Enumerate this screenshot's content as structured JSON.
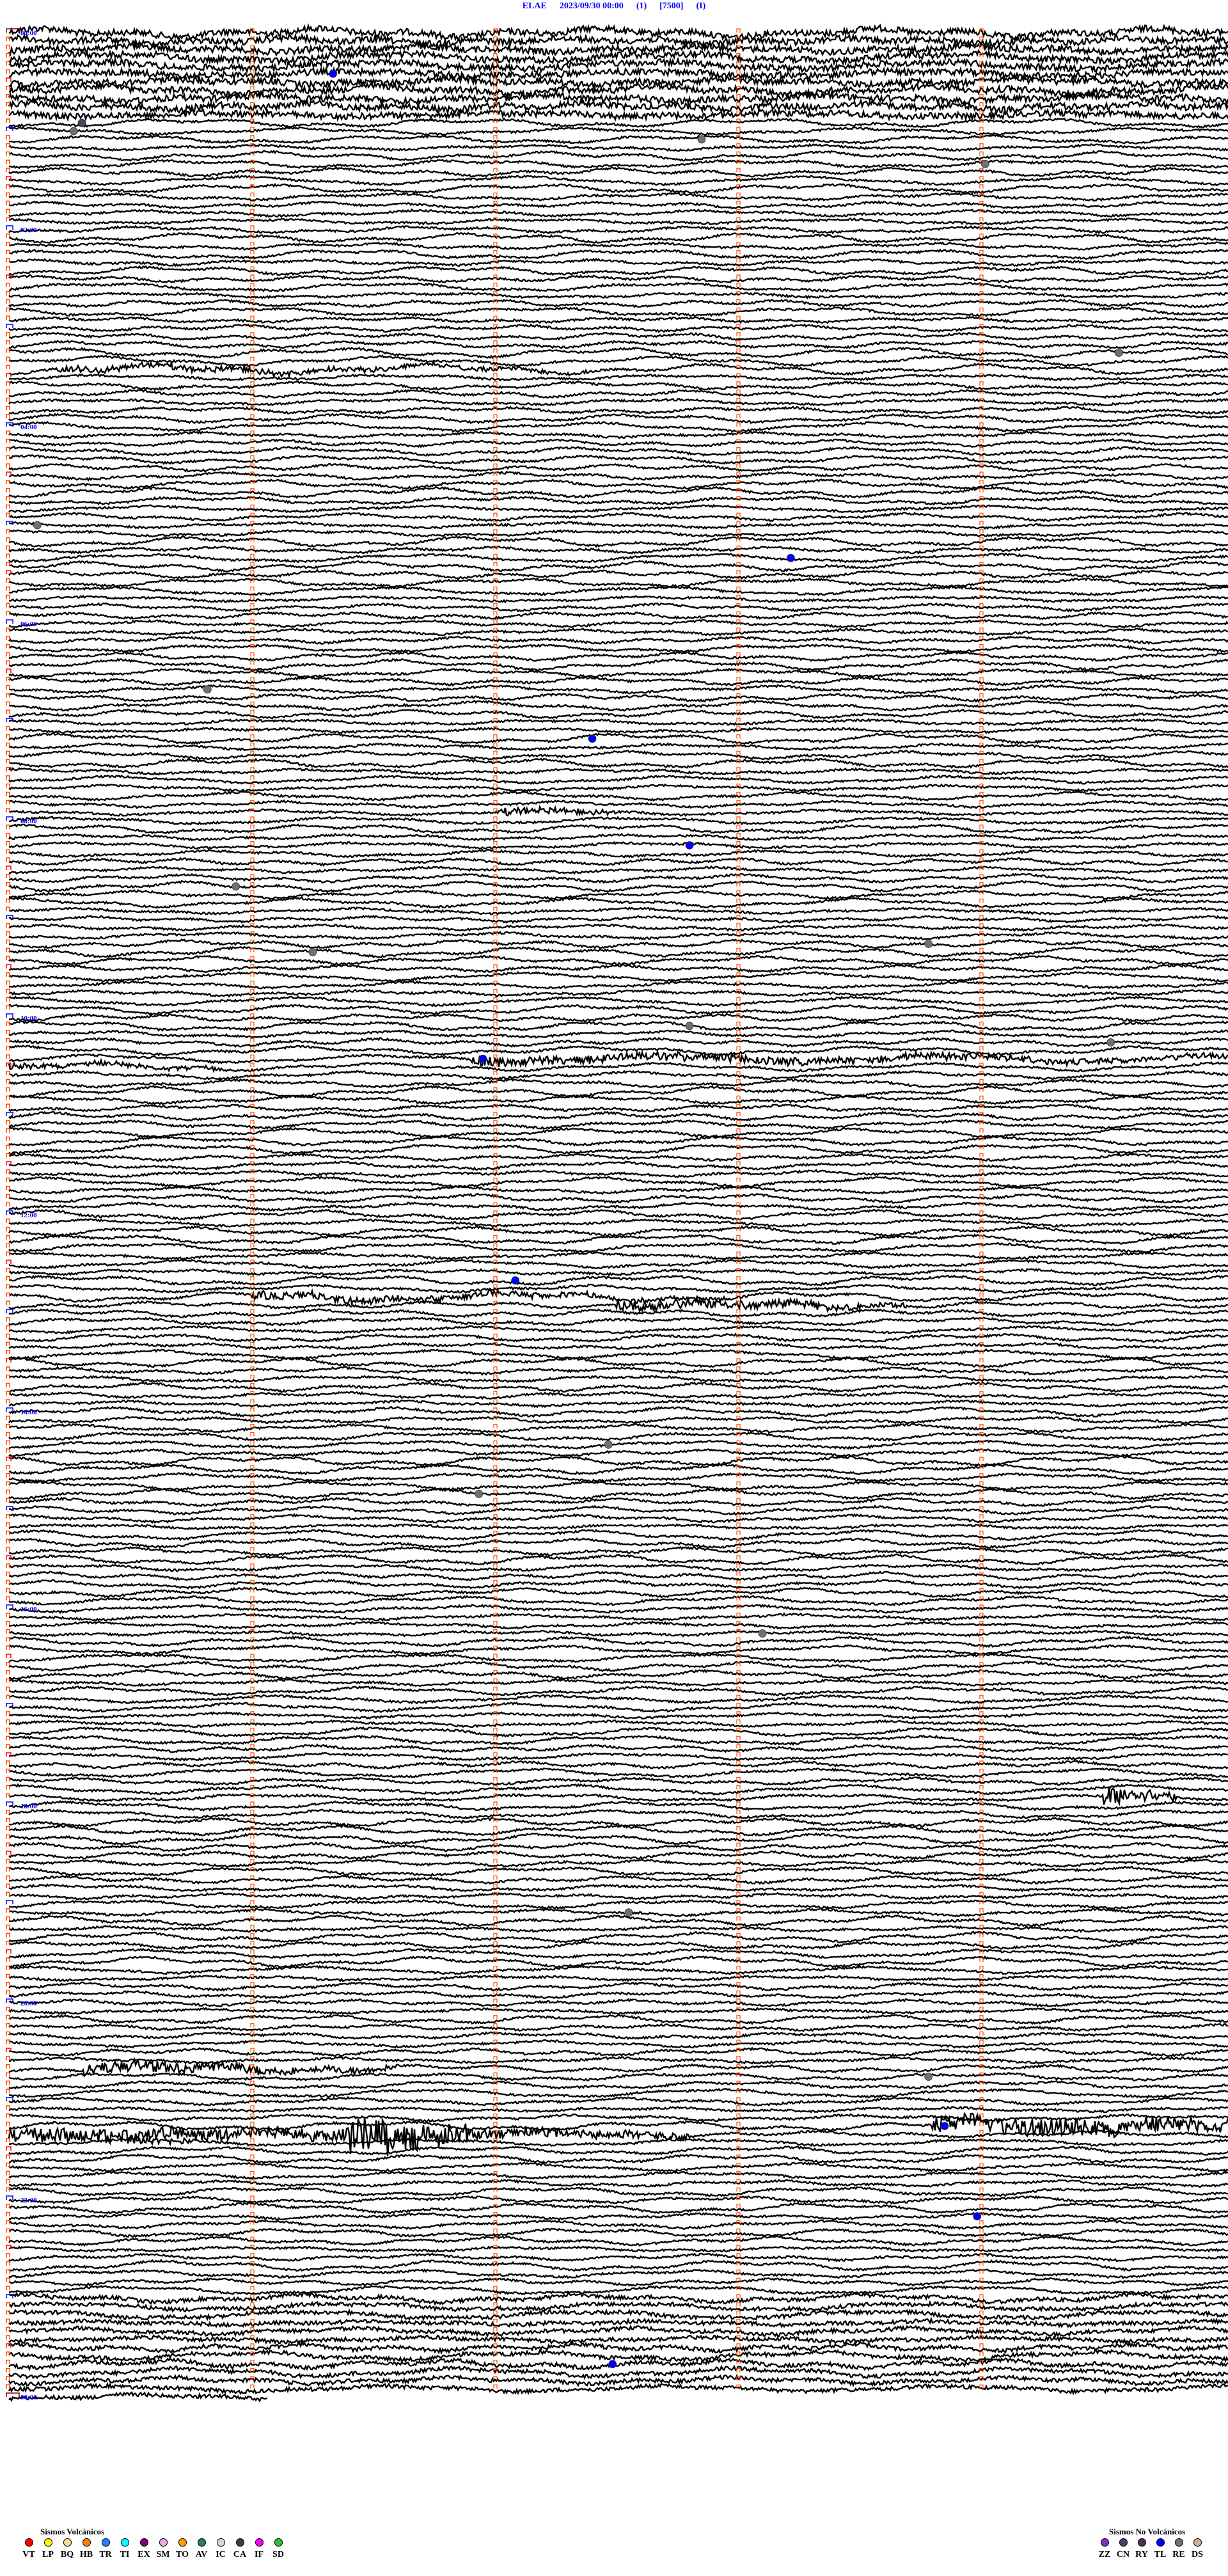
{
  "header": {
    "station": "ELAE",
    "datetime": "2023/09/30 00:00",
    "channel": "(1)",
    "scale": "[7500]",
    "mode": "(I)"
  },
  "hour_labels": [
    "00:00",
    "02:00",
    "04:00",
    "06:00",
    "08:00",
    "10:00",
    "12:00",
    "14:00",
    "16:00",
    "18:00",
    "20:00",
    "22:00",
    "00:00"
  ],
  "events": [
    {
      "time": "00:26:20",
      "type": "TL"
    },
    {
      "time": "00:55:18",
      "type": "CN"
    },
    {
      "time": "01:00:16",
      "type": "RE"
    },
    {
      "time": "01:07:51",
      "type": "RE"
    },
    {
      "time": "01:24:01",
      "type": "RE"
    },
    {
      "time": "03:19:34",
      "type": "RE"
    },
    {
      "time": "05:00:07",
      "type": "RE"
    },
    {
      "time": "05:23:13",
      "type": "TL"
    },
    {
      "time": "06:40:49",
      "type": "RE"
    },
    {
      "time": "07:12:24",
      "type": "TL"
    },
    {
      "time": "08:17:48",
      "type": "TL"
    },
    {
      "time": "08:40:56",
      "type": "RE"
    },
    {
      "time": "09:18:47",
      "type": "RE"
    },
    {
      "time": "09:21:15",
      "type": "RE"
    },
    {
      "time": "10:07:48",
      "type": "RE"
    },
    {
      "time": "10:19:32",
      "type": "RE"
    },
    {
      "time": "10:26:57",
      "type": "TL"
    },
    {
      "time": "12:42:05",
      "type": "TL"
    },
    {
      "time": "14:22:28",
      "type": "RE"
    },
    {
      "time": "14:51:56",
      "type": "RE"
    },
    {
      "time": "16:18:06",
      "type": "RE"
    },
    {
      "time": "19:07:33",
      "type": "RE"
    },
    {
      "time": "20:48:47",
      "type": "RE"
    },
    {
      "time": "21:18:51",
      "type": "TL"
    },
    {
      "time": "22:13:59",
      "type": "TL"
    },
    {
      "time": "23:42:29",
      "type": "TL"
    }
  ],
  "legend_volcanic": {
    "title": "Sismos Volcánicos",
    "items": [
      {
        "code": "VT",
        "color": "#ff0000"
      },
      {
        "code": "LP",
        "color": "#ffff00"
      },
      {
        "code": "BQ",
        "color": "#f0e0a0"
      },
      {
        "code": "HB",
        "color": "#ff8000"
      },
      {
        "code": "TR",
        "color": "#2080ff"
      },
      {
        "code": "TI",
        "color": "#00ffff"
      },
      {
        "code": "EX",
        "color": "#800080"
      },
      {
        "code": "SM",
        "color": "#f0a8e0"
      },
      {
        "code": "TO",
        "color": "#ffa000"
      },
      {
        "code": "AV",
        "color": "#208060"
      },
      {
        "code": "IC",
        "color": "#d8d8d8"
      },
      {
        "code": "CA",
        "color": "#503050"
      },
      {
        "code": "IF",
        "color": "#ff00ff"
      },
      {
        "code": "SD",
        "color": "#30c030"
      }
    ]
  },
  "legend_non_volcanic": {
    "title": "Sismos No Volcánicos",
    "items": [
      {
        "code": "ZZ",
        "color": "#8030d0"
      },
      {
        "code": "CN",
        "color": "#504060"
      },
      {
        "code": "RY",
        "color": "#503050"
      },
      {
        "code": "TL",
        "color": "#0000ff"
      },
      {
        "code": "RE",
        "color": "#707070"
      },
      {
        "code": "DS",
        "color": "#d0b090"
      }
    ]
  }
}
